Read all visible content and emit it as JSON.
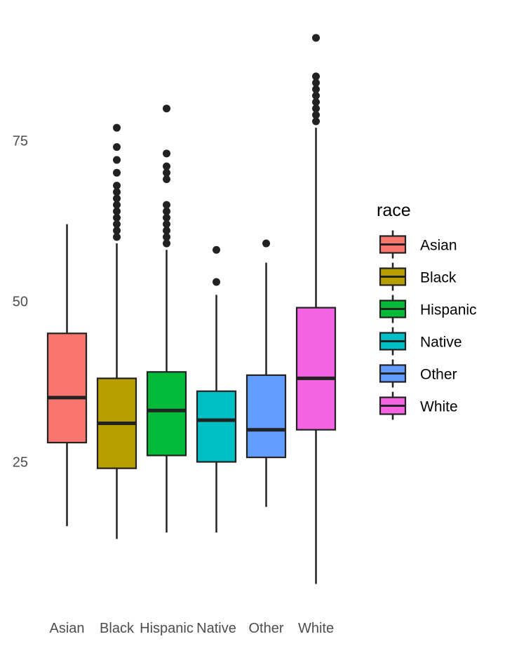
{
  "chart_data": {
    "type": "boxplot",
    "title": "",
    "xlabel": "",
    "ylabel": "",
    "ylim": [
      6,
      94
    ],
    "y_ticks": [
      25,
      50,
      75
    ],
    "y_tick_labels": [
      "25",
      "50",
      "75"
    ],
    "grid": false,
    "categories": [
      "Asian",
      "Black",
      "Hispanic",
      "Native",
      "Other",
      "White"
    ],
    "legend": {
      "title": "race",
      "position": "right",
      "entries": [
        "Asian",
        "Black",
        "Hispanic",
        "Native",
        "Other",
        "White"
      ]
    },
    "series": [
      {
        "name": "Asian",
        "color": "#F8766D",
        "whisker_low": 15,
        "q1": 28,
        "median": 35,
        "q3": 45,
        "whisker_high": 62,
        "outliers": []
      },
      {
        "name": "Black",
        "color": "#B79F00",
        "whisker_low": 13,
        "q1": 24,
        "median": 31,
        "q3": 38,
        "whisker_high": 59,
        "outliers": [
          60,
          61,
          62,
          63,
          64,
          65,
          66,
          67,
          68,
          70,
          72,
          74,
          77
        ]
      },
      {
        "name": "Hispanic",
        "color": "#00BA38",
        "whisker_low": 14,
        "q1": 26,
        "median": 33,
        "q3": 39,
        "whisker_high": 58,
        "outliers": [
          59,
          60,
          61,
          62,
          63,
          64,
          65,
          69,
          70,
          71,
          73,
          80
        ]
      },
      {
        "name": "Native",
        "color": "#00BFC4",
        "whisker_low": 14,
        "q1": 25,
        "median": 31.5,
        "q3": 36,
        "whisker_high": 51,
        "outliers": [
          53,
          58
        ]
      },
      {
        "name": "Other",
        "color": "#619CFF",
        "whisker_low": 18,
        "q1": 25.7,
        "median": 30,
        "q3": 38.5,
        "whisker_high": 56,
        "outliers": [
          59
        ]
      },
      {
        "name": "White",
        "color": "#F564E3",
        "whisker_low": 6,
        "q1": 30,
        "median": 38,
        "q3": 49,
        "whisker_high": 77,
        "outliers": [
          78,
          79,
          80,
          81,
          82,
          83,
          84,
          85,
          91
        ]
      }
    ]
  }
}
